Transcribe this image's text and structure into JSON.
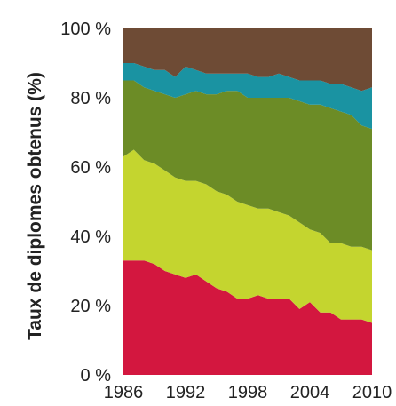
{
  "chart_data": {
    "type": "area",
    "stacked": true,
    "ylabel": "Taux de diplomes obtenus (%)",
    "xlabel": "",
    "ylim": [
      0,
      100
    ],
    "xlim": [
      1986,
      2010
    ],
    "grid": false,
    "y_ticks": [
      "0 %",
      "20 %",
      "40 %",
      "60 %",
      "80 %",
      "100 %"
    ],
    "x_ticks": [
      "1986",
      "1992",
      "1998",
      "2004",
      "2010"
    ],
    "x_tick_values": [
      1986,
      1992,
      1998,
      2004,
      2010
    ],
    "x": [
      1986,
      1987,
      1988,
      1989,
      1990,
      1991,
      1992,
      1993,
      1994,
      1995,
      1996,
      1997,
      1998,
      1999,
      2000,
      2001,
      2002,
      2003,
      2004,
      2005,
      2006,
      2007,
      2008,
      2009,
      2010
    ],
    "series": [
      {
        "color": "#d3173f",
        "values": [
          33,
          33,
          33,
          32,
          30,
          29,
          28,
          29,
          27,
          25,
          24,
          22,
          22,
          23,
          22,
          22,
          22,
          19,
          21,
          18,
          18,
          16,
          16,
          16,
          15
        ]
      },
      {
        "color": "#c4d52f",
        "values": [
          30,
          32,
          29,
          29,
          29,
          28,
          28,
          27,
          28,
          28,
          28,
          28,
          27,
          25,
          26,
          25,
          24,
          25,
          21,
          23,
          20,
          22,
          21,
          21,
          21
        ]
      },
      {
        "color": "#6c8c26",
        "values": [
          22,
          20,
          21,
          21,
          22,
          23,
          25,
          26,
          26,
          28,
          30,
          32,
          31,
          32,
          32,
          33,
          34,
          35,
          36,
          37,
          39,
          38,
          38,
          35,
          35
        ]
      },
      {
        "color": "#1a93a2",
        "values": [
          5,
          5,
          6,
          6,
          7,
          6,
          8,
          6,
          6,
          6,
          5,
          5,
          7,
          6,
          6,
          7,
          6,
          6,
          7,
          7,
          7,
          8,
          8,
          10,
          12
        ]
      },
      {
        "color": "#6e4b35",
        "values": [
          10,
          10,
          11,
          12,
          12,
          14,
          11,
          12,
          13,
          13,
          13,
          13,
          13,
          14,
          14,
          13,
          14,
          15,
          15,
          15,
          16,
          16,
          17,
          18,
          17
        ]
      }
    ]
  }
}
